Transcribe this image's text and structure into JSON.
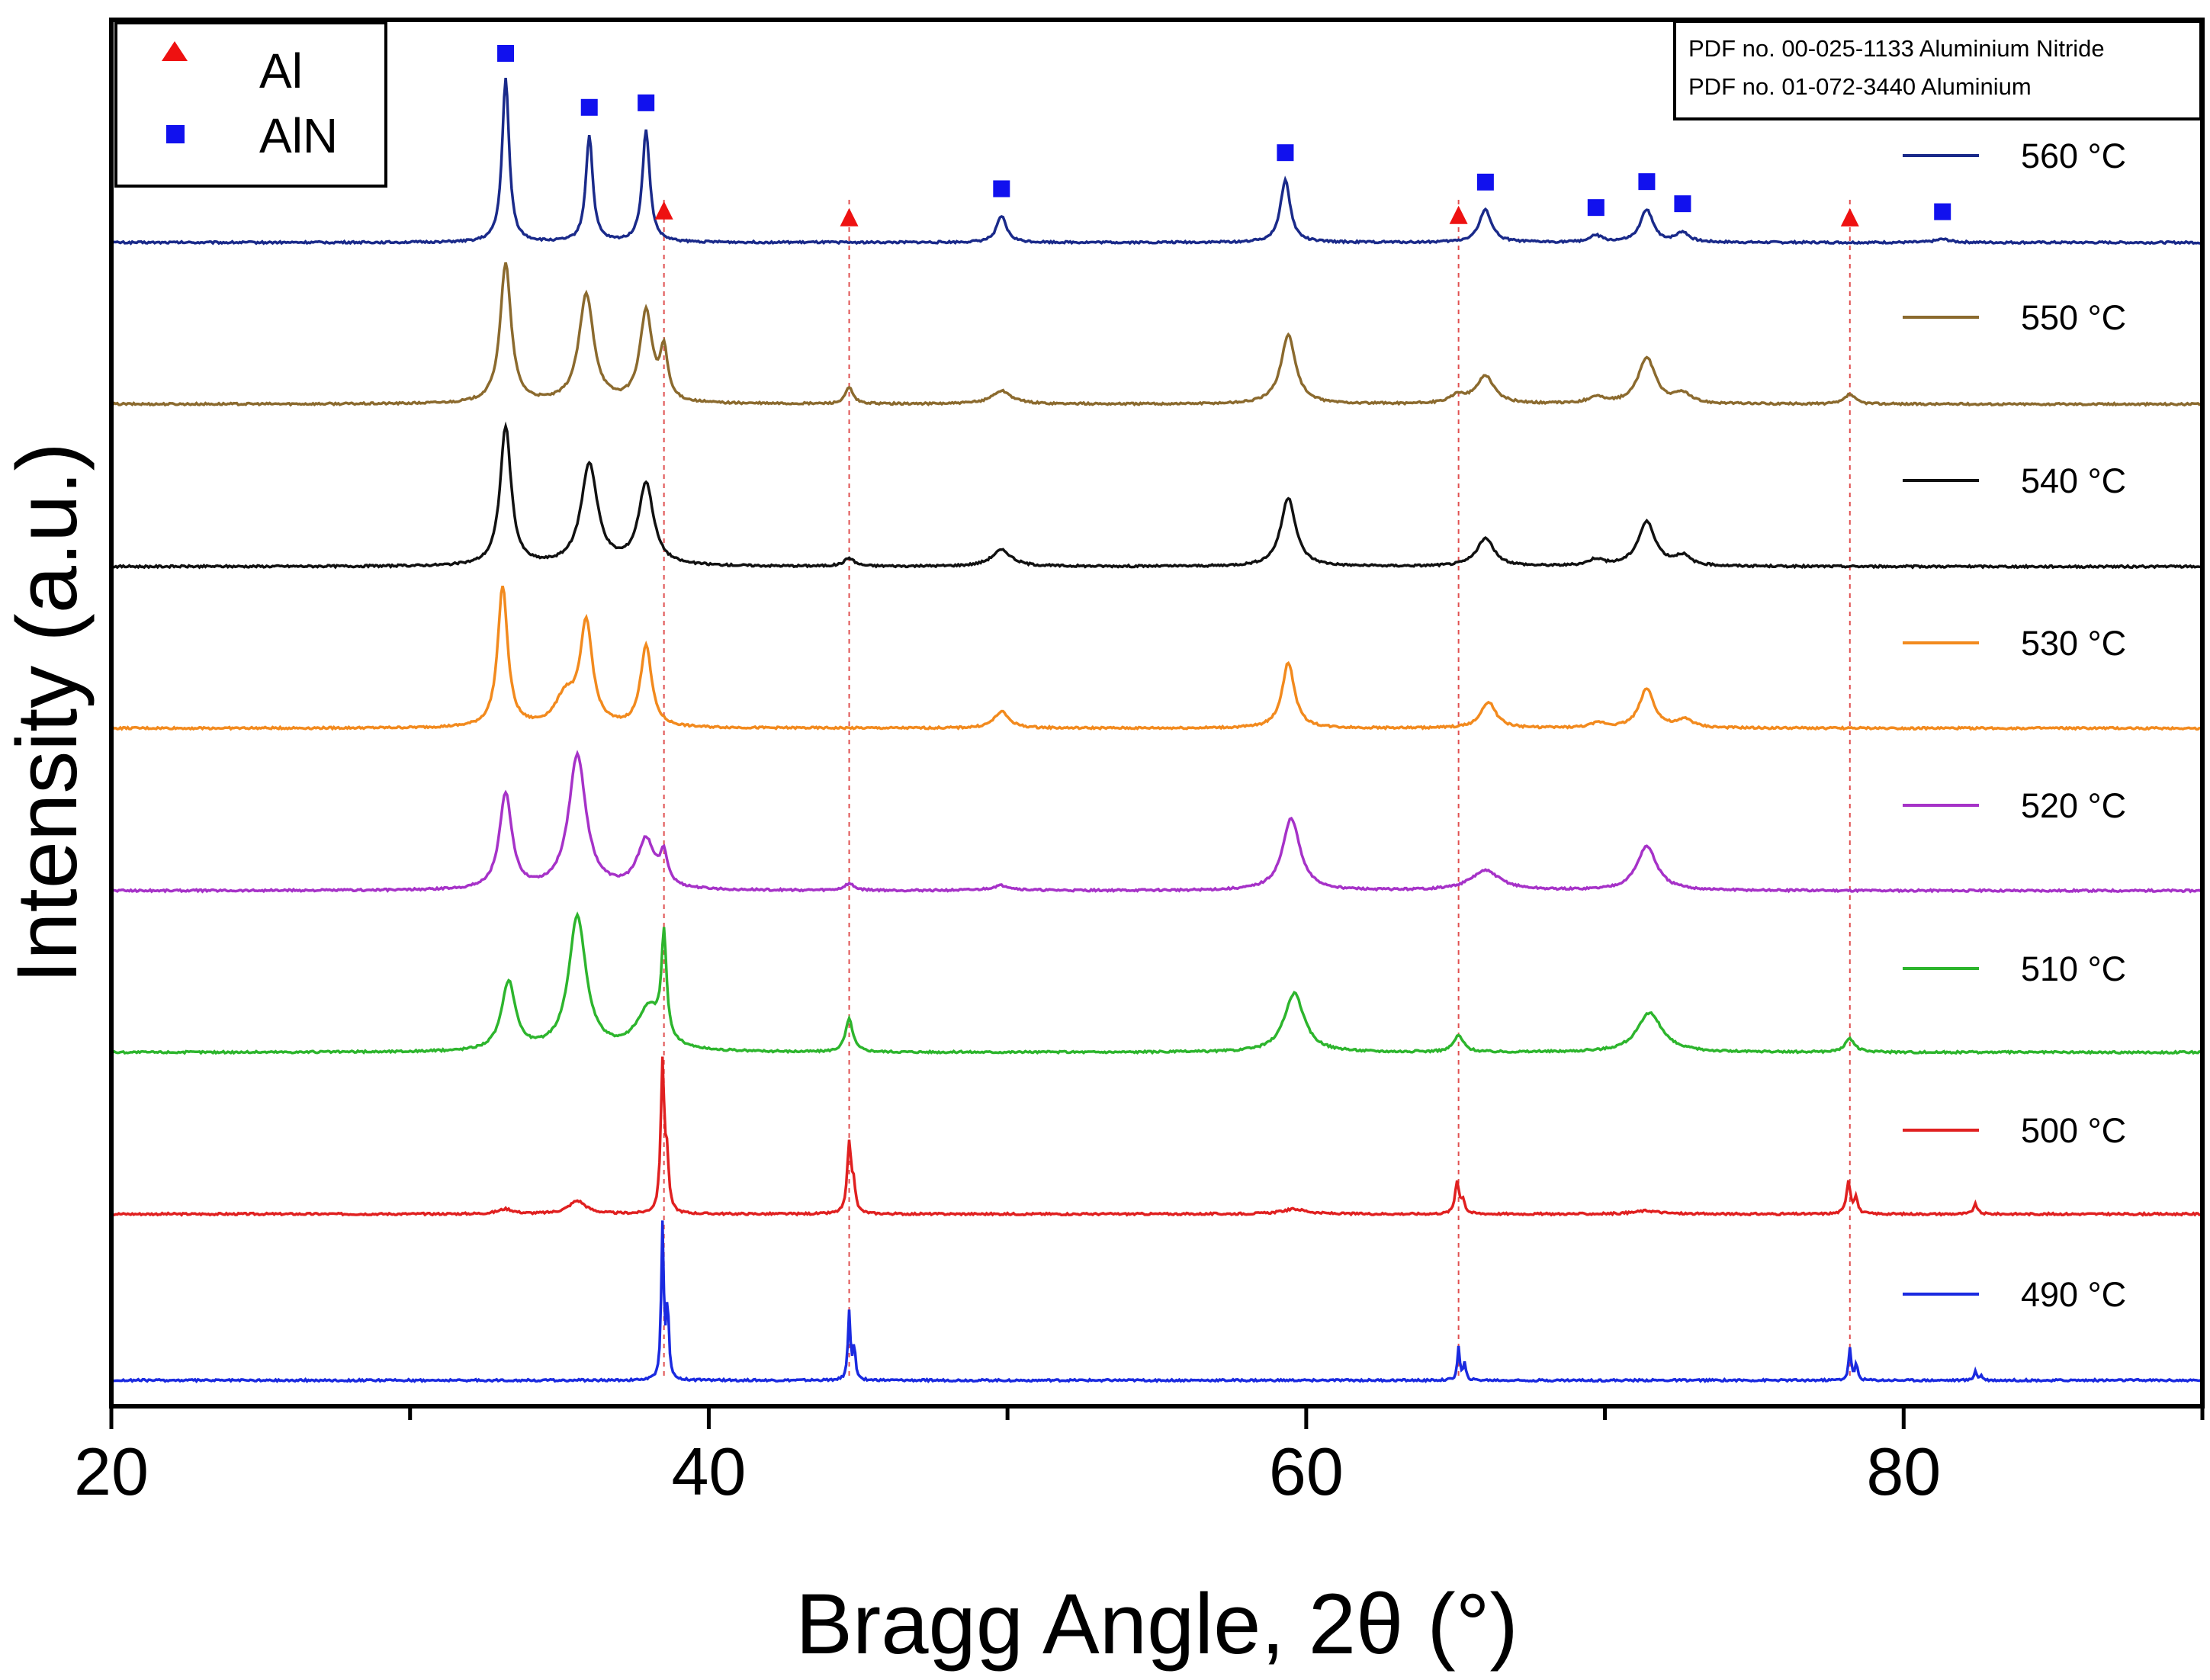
{
  "chart_data": {
    "type": "line",
    "title": "",
    "xlabel": "Bragg  Angle, 2θ (°)",
    "ylabel": "Intensity (a.u.)",
    "xlim": [
      20,
      90
    ],
    "xticks": [
      20,
      40,
      60,
      80
    ],
    "grid": false,
    "legend": {
      "position": "top-left",
      "entries": [
        {
          "label": "Al",
          "marker": "triangle",
          "color": "#ee1111"
        },
        {
          "label": "AlN",
          "marker": "square",
          "color": "#1111ee"
        }
      ]
    },
    "references": [
      "PDF no. 00-025-1133 Aluminium Nitride",
      "PDF no. 01-072-3440 Aluminium"
    ],
    "al_reference_lines": [
      38.5,
      44.7,
      65.1,
      78.2
    ],
    "phase_markers_560": {
      "Al": [
        38.5,
        44.7,
        65.1,
        78.2
      ],
      "AlN": [
        33.2,
        36.0,
        37.9,
        49.8,
        59.3,
        66.0,
        69.7,
        71.4,
        72.6,
        81.3
      ]
    },
    "series": [
      {
        "name": "560 °C",
        "color": "#1a2a8a",
        "peaks": [
          [
            33.2,
            1.0,
            0.14
          ],
          [
            36.0,
            0.65,
            0.14
          ],
          [
            37.9,
            0.68,
            0.15
          ],
          [
            49.8,
            0.16,
            0.2
          ],
          [
            59.3,
            0.38,
            0.2
          ],
          [
            66.0,
            0.2,
            0.25
          ],
          [
            69.7,
            0.04,
            0.25
          ],
          [
            71.4,
            0.2,
            0.25
          ],
          [
            72.6,
            0.06,
            0.25
          ],
          [
            81.3,
            0.02,
            0.3
          ]
        ]
      },
      {
        "name": "550 °C",
        "color": "#8b6a2e",
        "peaks": [
          [
            33.2,
            0.85,
            0.22
          ],
          [
            35.9,
            0.66,
            0.3
          ],
          [
            37.9,
            0.55,
            0.25
          ],
          [
            38.5,
            0.3,
            0.15
          ],
          [
            44.7,
            0.1,
            0.15
          ],
          [
            49.8,
            0.08,
            0.4
          ],
          [
            59.4,
            0.42,
            0.3
          ],
          [
            65.1,
            0.05,
            0.3
          ],
          [
            66.0,
            0.17,
            0.35
          ],
          [
            69.7,
            0.04,
            0.3
          ],
          [
            71.4,
            0.28,
            0.35
          ],
          [
            72.6,
            0.06,
            0.3
          ],
          [
            78.2,
            0.06,
            0.2
          ]
        ]
      },
      {
        "name": "540 °C",
        "color": "#111111",
        "peaks": [
          [
            33.2,
            0.85,
            0.22
          ],
          [
            36.0,
            0.62,
            0.33
          ],
          [
            37.9,
            0.5,
            0.3
          ],
          [
            44.7,
            0.05,
            0.2
          ],
          [
            49.8,
            0.1,
            0.4
          ],
          [
            59.4,
            0.42,
            0.3
          ],
          [
            66.0,
            0.17,
            0.35
          ],
          [
            69.7,
            0.04,
            0.3
          ],
          [
            71.4,
            0.27,
            0.35
          ],
          [
            72.6,
            0.06,
            0.3
          ]
        ]
      },
      {
        "name": "530 °C",
        "color": "#f28a1e",
        "peaks": [
          [
            33.1,
            0.86,
            0.2
          ],
          [
            35.9,
            0.62,
            0.25
          ],
          [
            35.2,
            0.18,
            0.4
          ],
          [
            37.9,
            0.5,
            0.22
          ],
          [
            49.8,
            0.1,
            0.3
          ],
          [
            59.4,
            0.4,
            0.25
          ],
          [
            66.1,
            0.16,
            0.3
          ],
          [
            69.8,
            0.03,
            0.3
          ],
          [
            71.4,
            0.24,
            0.3
          ],
          [
            72.7,
            0.05,
            0.3
          ]
        ]
      },
      {
        "name": "520 °C",
        "color": "#a632c8",
        "peaks": [
          [
            33.2,
            0.58,
            0.25
          ],
          [
            35.6,
            0.82,
            0.35
          ],
          [
            37.9,
            0.3,
            0.35
          ],
          [
            38.5,
            0.18,
            0.15
          ],
          [
            44.7,
            0.04,
            0.2
          ],
          [
            49.8,
            0.03,
            0.4
          ],
          [
            59.5,
            0.44,
            0.35
          ],
          [
            66.0,
            0.12,
            0.6
          ],
          [
            71.4,
            0.27,
            0.4
          ]
        ]
      },
      {
        "name": "510 °C",
        "color": "#2db52d",
        "peaks": [
          [
            33.3,
            0.42,
            0.28
          ],
          [
            35.6,
            0.82,
            0.35
          ],
          [
            38.0,
            0.26,
            0.5
          ],
          [
            38.5,
            0.62,
            0.1
          ],
          [
            44.7,
            0.2,
            0.15
          ],
          [
            59.6,
            0.36,
            0.4
          ],
          [
            65.1,
            0.1,
            0.2
          ],
          [
            71.5,
            0.24,
            0.5
          ],
          [
            78.2,
            0.08,
            0.2
          ]
        ]
      },
      {
        "name": "500 °C",
        "color": "#e02020",
        "peaks": [
          [
            33.2,
            0.03,
            0.3
          ],
          [
            35.6,
            0.08,
            0.35
          ],
          [
            38.45,
            0.9,
            0.07
          ],
          [
            38.6,
            0.3,
            0.07
          ],
          [
            44.7,
            0.42,
            0.08
          ],
          [
            44.85,
            0.15,
            0.07
          ],
          [
            59.6,
            0.03,
            0.5
          ],
          [
            65.05,
            0.2,
            0.08
          ],
          [
            65.25,
            0.08,
            0.07
          ],
          [
            71.4,
            0.02,
            0.5
          ],
          [
            78.15,
            0.2,
            0.08
          ],
          [
            78.4,
            0.1,
            0.07
          ],
          [
            82.4,
            0.06,
            0.08
          ]
        ]
      },
      {
        "name": "490 °C",
        "color": "#1a2ae0",
        "peaks": [
          [
            38.45,
            0.94,
            0.05
          ],
          [
            38.62,
            0.45,
            0.05
          ],
          [
            44.7,
            0.42,
            0.05
          ],
          [
            44.87,
            0.2,
            0.05
          ],
          [
            65.1,
            0.2,
            0.05
          ],
          [
            65.3,
            0.1,
            0.05
          ],
          [
            78.2,
            0.2,
            0.05
          ],
          [
            78.42,
            0.1,
            0.05
          ],
          [
            82.4,
            0.06,
            0.05
          ],
          [
            82.6,
            0.03,
            0.05
          ]
        ]
      }
    ]
  }
}
